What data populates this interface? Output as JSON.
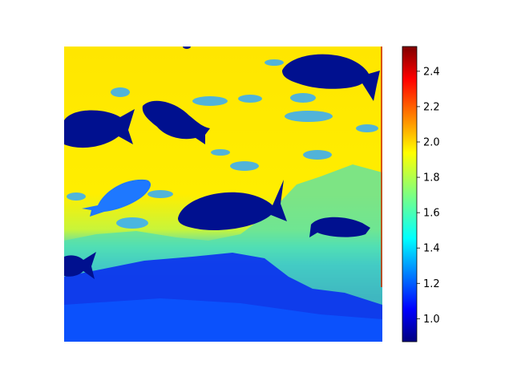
{
  "chart_data": {
    "type": "heatmap",
    "title": "",
    "xlabel": "",
    "ylabel": "",
    "x_axis_visible": false,
    "y_axis_visible": false,
    "colormap": "jet",
    "colorbar": {
      "orientation": "vertical",
      "placement": "right",
      "vmin": 0.87,
      "vmax": 2.54,
      "ticks": [
        1.0,
        1.2,
        1.4,
        1.6,
        1.8,
        2.0,
        2.2,
        2.4
      ],
      "tick_labels": [
        "1.0",
        "1.2",
        "1.4",
        "1.6",
        "1.8",
        "2.0",
        "2.2",
        "2.4"
      ]
    },
    "content": {
      "background_value": 1.95,
      "lower_region_value": 1.05,
      "transition_value": 1.55,
      "fish_value": 0.92,
      "small_fish_value": 1.45
    },
    "colors": {
      "jet_stops": [
        "#00007f",
        "#0000ff",
        "#007fff",
        "#00ffff",
        "#7fff7f",
        "#ffff00",
        "#ff7f00",
        "#ff0000",
        "#7f0000"
      ]
    }
  }
}
